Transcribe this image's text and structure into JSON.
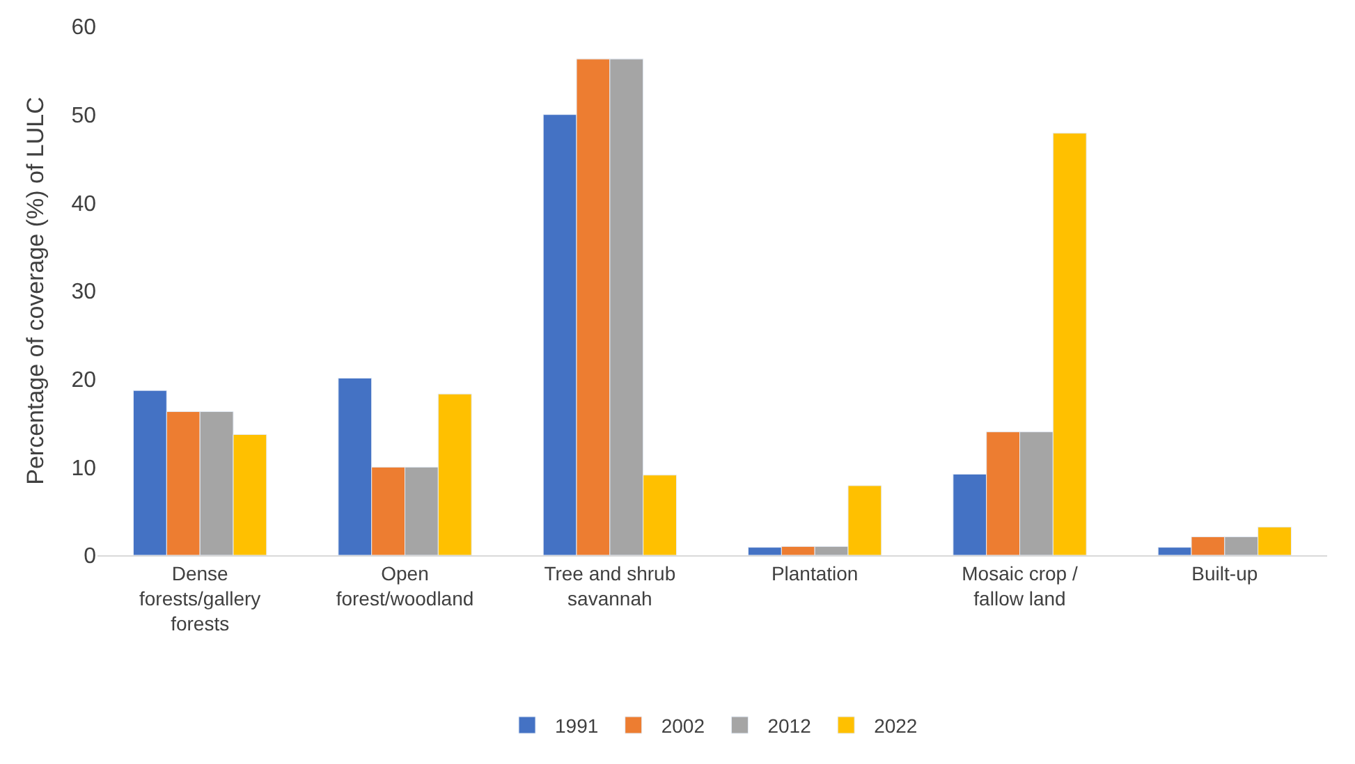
{
  "chart_data": {
    "type": "bar",
    "ylabel": "Percentage of coverage (%) of LULC",
    "categories": [
      "Dense forests/gallery forests",
      "Open forest/woodland",
      "Tree and shrub savannah",
      "Plantation",
      "Mosaic crop / fallow land",
      "Built-up"
    ],
    "series": [
      {
        "name": "1991",
        "color": "#4472c4",
        "values": [
          18.7,
          20.1,
          50.0,
          0.9,
          9.2,
          0.9
        ]
      },
      {
        "name": "2002",
        "color": "#ed7d31",
        "values": [
          16.3,
          10.0,
          56.3,
          1.0,
          14.0,
          2.1
        ]
      },
      {
        "name": "2012",
        "color": "#a5a5a5",
        "values": [
          16.3,
          10.0,
          56.3,
          1.0,
          14.0,
          2.1
        ]
      },
      {
        "name": "2022",
        "color": "#ffc000",
        "values": [
          13.7,
          18.3,
          9.1,
          7.9,
          47.9,
          3.2
        ]
      }
    ],
    "ylim": [
      0,
      60
    ],
    "yticks": [
      0,
      10,
      20,
      30,
      40,
      50,
      60
    ],
    "grid": false,
    "legend": "bottom"
  }
}
